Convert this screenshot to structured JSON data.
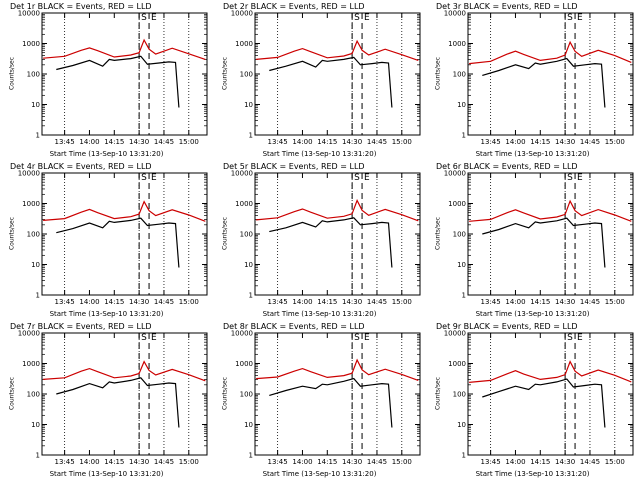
{
  "chart_data": [
    {
      "type": "line",
      "title": "Det 1r BLACK = Events, RED = LLD",
      "xlabel": "Start Time (13-Sep-10 13:31:20)",
      "ylabel": "Counts/sec",
      "y_scale": "log",
      "ylim": [
        1,
        10000
      ],
      "xlim": [
        "13:31:20",
        "15:11:00"
      ],
      "xticks": [
        "13:45",
        "14:00",
        "14:15",
        "14:30",
        "14:45",
        "15:00"
      ],
      "yticks": [
        "1",
        "10",
        "100",
        "1000",
        "10000"
      ],
      "markers": [
        "S",
        "E"
      ],
      "series": [
        {
          "name": "Events",
          "color": "#000000",
          "x": [
            "13:40",
            "13:50",
            "14:00",
            "14:08",
            "14:12",
            "14:15",
            "14:25",
            "14:31",
            "14:35",
            "14:42",
            "14:48",
            "14:52",
            "14:54"
          ],
          "values": [
            140,
            190,
            280,
            180,
            300,
            280,
            320,
            380,
            210,
            230,
            250,
            240,
            8
          ]
        },
        {
          "name": "LLD",
          "color": "#cc0000",
          "x": [
            "13:32",
            "13:45",
            "13:55",
            "14:00",
            "14:05",
            "14:15",
            "14:25",
            "14:30",
            "14:33",
            "14:36",
            "14:40",
            "14:50",
            "15:00",
            "15:10"
          ],
          "values": [
            330,
            380,
            600,
            720,
            580,
            360,
            420,
            500,
            1300,
            650,
            450,
            700,
            460,
            300
          ]
        }
      ]
    },
    {
      "type": "line",
      "title": "Det 2r BLACK = Events, RED = LLD",
      "xlabel": "Start Time (13-Sep-10 13:31:20)",
      "ylabel": "Counts/sec",
      "y_scale": "log",
      "ylim": [
        1,
        10000
      ],
      "xlim": [
        "13:31:20",
        "15:11:00"
      ],
      "xticks": [
        "13:45",
        "14:00",
        "14:15",
        "14:30",
        "14:45",
        "15:00"
      ],
      "yticks": [
        "1",
        "10",
        "100",
        "1000",
        "10000"
      ],
      "markers": [
        "S",
        "E"
      ],
      "series": [
        {
          "name": "Events",
          "color": "#000000",
          "x": [
            "13:40",
            "13:50",
            "14:00",
            "14:08",
            "14:12",
            "14:15",
            "14:25",
            "14:31",
            "14:35",
            "14:42",
            "14:48",
            "14:52",
            "14:54"
          ],
          "values": [
            130,
            180,
            260,
            170,
            280,
            260,
            300,
            350,
            200,
            220,
            240,
            230,
            8
          ]
        },
        {
          "name": "LLD",
          "color": "#cc0000",
          "x": [
            "13:32",
            "13:45",
            "13:55",
            "14:00",
            "14:05",
            "14:15",
            "14:25",
            "14:30",
            "14:33",
            "14:36",
            "14:40",
            "14:50",
            "15:00",
            "15:10"
          ],
          "values": [
            300,
            350,
            560,
            680,
            540,
            340,
            390,
            470,
            1200,
            600,
            420,
            650,
            430,
            280
          ]
        }
      ]
    },
    {
      "type": "line",
      "title": "Det 3r BLACK = Events, RED = LLD",
      "xlabel": "Start Time (13-Sep-10 13:31:20)",
      "ylabel": "Counts/sec",
      "y_scale": "log",
      "ylim": [
        1,
        10000
      ],
      "xlim": [
        "13:31:20",
        "15:11:00"
      ],
      "xticks": [
        "13:45",
        "14:00",
        "14:15",
        "14:30",
        "14:45",
        "15:00"
      ],
      "yticks": [
        "1",
        "10",
        "100",
        "1000",
        "10000"
      ],
      "markers": [
        "S",
        "E"
      ],
      "series": [
        {
          "name": "Events",
          "color": "#000000",
          "x": [
            "13:40",
            "13:50",
            "14:00",
            "14:08",
            "14:12",
            "14:15",
            "14:25",
            "14:31",
            "14:35",
            "14:42",
            "14:48",
            "14:52",
            "14:54"
          ],
          "values": [
            90,
            130,
            200,
            150,
            230,
            210,
            260,
            320,
            180,
            200,
            220,
            210,
            8
          ]
        },
        {
          "name": "LLD",
          "color": "#cc0000",
          "x": [
            "13:32",
            "13:45",
            "13:55",
            "14:00",
            "14:05",
            "14:15",
            "14:25",
            "14:30",
            "14:33",
            "14:36",
            "14:40",
            "14:50",
            "15:00",
            "15:10"
          ],
          "values": [
            220,
            260,
            450,
            560,
            440,
            280,
            330,
            420,
            1100,
            550,
            380,
            600,
            400,
            240
          ]
        }
      ]
    },
    {
      "type": "line",
      "title": "Det 4r BLACK = Events, RED = LLD",
      "xlabel": "Start Time (13-Sep-10 13:31:20)",
      "ylabel": "Counts/sec",
      "y_scale": "log",
      "ylim": [
        1,
        10000
      ],
      "xlim": [
        "13:31:20",
        "15:11:00"
      ],
      "xticks": [
        "13:45",
        "14:00",
        "14:15",
        "14:30",
        "14:45",
        "15:00"
      ],
      "yticks": [
        "1",
        "10",
        "100",
        "1000",
        "10000"
      ],
      "markers": [
        "S",
        "E"
      ],
      "series": [
        {
          "name": "Events",
          "color": "#000000",
          "x": [
            "13:40",
            "13:50",
            "14:00",
            "14:08",
            "14:12",
            "14:15",
            "14:25",
            "14:31",
            "14:35",
            "14:42",
            "14:48",
            "14:52",
            "14:54"
          ],
          "values": [
            110,
            150,
            230,
            160,
            260,
            240,
            280,
            330,
            190,
            210,
            230,
            220,
            8
          ]
        },
        {
          "name": "LLD",
          "color": "#cc0000",
          "x": [
            "13:32",
            "13:45",
            "13:55",
            "14:00",
            "14:05",
            "14:15",
            "14:25",
            "14:30",
            "14:33",
            "14:36",
            "14:40",
            "14:50",
            "15:00",
            "15:10"
          ],
          "values": [
            280,
            320,
            520,
            640,
            500,
            320,
            370,
            450,
            1150,
            580,
            400,
            620,
            420,
            260
          ]
        }
      ]
    },
    {
      "type": "line",
      "title": "Det 5r BLACK = Events, RED = LLD",
      "xlabel": "Start Time (13-Sep-10 13:31:20)",
      "ylabel": "Counts/sec",
      "y_scale": "log",
      "ylim": [
        1,
        10000
      ],
      "xlim": [
        "13:31:20",
        "15:11:00"
      ],
      "xticks": [
        "13:45",
        "14:00",
        "14:15",
        "14:30",
        "14:45",
        "15:00"
      ],
      "yticks": [
        "1",
        "10",
        "100",
        "1000",
        "10000"
      ],
      "markers": [
        "S",
        "E"
      ],
      "series": [
        {
          "name": "Events",
          "color": "#000000",
          "x": [
            "13:40",
            "13:50",
            "14:00",
            "14:08",
            "14:12",
            "14:15",
            "14:25",
            "14:31",
            "14:35",
            "14:42",
            "14:48",
            "14:52",
            "14:54"
          ],
          "values": [
            120,
            160,
            240,
            170,
            270,
            250,
            290,
            340,
            200,
            220,
            240,
            230,
            8
          ]
        },
        {
          "name": "LLD",
          "color": "#cc0000",
          "x": [
            "13:32",
            "13:45",
            "13:55",
            "14:00",
            "14:05",
            "14:15",
            "14:25",
            "14:30",
            "14:33",
            "14:36",
            "14:40",
            "14:50",
            "15:00",
            "15:10"
          ],
          "values": [
            290,
            340,
            540,
            660,
            520,
            330,
            380,
            460,
            1250,
            600,
            410,
            640,
            430,
            270
          ]
        }
      ]
    },
    {
      "type": "line",
      "title": "Det 6r BLACK = Events, RED = LLD",
      "xlabel": "Start Time (13-Sep-10 13:31:20)",
      "ylabel": "Counts/sec",
      "y_scale": "log",
      "ylim": [
        1,
        10000
      ],
      "xlim": [
        "13:31:20",
        "15:11:00"
      ],
      "xticks": [
        "13:45",
        "14:00",
        "14:15",
        "14:30",
        "14:45",
        "15:00"
      ],
      "yticks": [
        "1",
        "10",
        "100",
        "1000",
        "10000"
      ],
      "markers": [
        "S",
        "E"
      ],
      "series": [
        {
          "name": "Events",
          "color": "#000000",
          "x": [
            "13:40",
            "13:50",
            "14:00",
            "14:08",
            "14:12",
            "14:15",
            "14:25",
            "14:31",
            "14:35",
            "14:42",
            "14:48",
            "14:52",
            "14:54"
          ],
          "values": [
            100,
            140,
            220,
            160,
            250,
            230,
            270,
            330,
            190,
            210,
            230,
            220,
            8
          ]
        },
        {
          "name": "LLD",
          "color": "#cc0000",
          "x": [
            "13:32",
            "13:45",
            "13:55",
            "14:00",
            "14:05",
            "14:15",
            "14:25",
            "14:30",
            "14:33",
            "14:36",
            "14:40",
            "14:50",
            "15:00",
            "15:10"
          ],
          "values": [
            260,
            300,
            500,
            620,
            490,
            310,
            360,
            440,
            1200,
            580,
            400,
            630,
            420,
            260
          ]
        }
      ]
    },
    {
      "type": "line",
      "title": "Det 7r BLACK = Events, RED = LLD",
      "xlabel": "Start Time (13-Sep-10 13:31:20)",
      "ylabel": "Counts/sec",
      "y_scale": "log",
      "ylim": [
        1,
        10000
      ],
      "xlim": [
        "13:31:20",
        "15:11:00"
      ],
      "xticks": [
        "13:45",
        "14:00",
        "14:15",
        "14:30",
        "14:45",
        "15:00"
      ],
      "yticks": [
        "1",
        "10",
        "100",
        "1000",
        "10000"
      ],
      "markers": [
        "S",
        "E"
      ],
      "series": [
        {
          "name": "Events",
          "color": "#000000",
          "x": [
            "13:40",
            "13:50",
            "14:00",
            "14:08",
            "14:12",
            "14:15",
            "14:25",
            "14:31",
            "14:35",
            "14:42",
            "14:48",
            "14:52",
            "14:54"
          ],
          "values": [
            100,
            140,
            220,
            160,
            250,
            230,
            280,
            340,
            190,
            210,
            230,
            220,
            8
          ]
        },
        {
          "name": "LLD",
          "color": "#cc0000",
          "x": [
            "13:32",
            "13:45",
            "13:55",
            "14:00",
            "14:05",
            "14:15",
            "14:25",
            "14:30",
            "14:33",
            "14:36",
            "14:40",
            "14:50",
            "15:00",
            "15:10"
          ],
          "values": [
            300,
            340,
            560,
            680,
            540,
            340,
            390,
            470,
            1150,
            590,
            420,
            640,
            430,
            270
          ]
        }
      ]
    },
    {
      "type": "line",
      "title": "Det 8r BLACK = Events, RED = LLD",
      "xlabel": "Start Time (13-Sep-10 13:31:20)",
      "ylabel": "Counts/sec",
      "y_scale": "log",
      "ylim": [
        1,
        10000
      ],
      "xlim": [
        "13:31:20",
        "15:11:00"
      ],
      "xticks": [
        "13:45",
        "14:00",
        "14:15",
        "14:30",
        "14:45",
        "15:00"
      ],
      "yticks": [
        "1",
        "10",
        "100",
        "1000",
        "10000"
      ],
      "markers": [
        "S",
        "E"
      ],
      "series": [
        {
          "name": "Events",
          "color": "#000000",
          "x": [
            "13:40",
            "13:50",
            "14:00",
            "14:08",
            "14:12",
            "14:15",
            "14:25",
            "14:31",
            "14:35",
            "14:42",
            "14:48",
            "14:52",
            "14:54"
          ],
          "values": [
            90,
            130,
            180,
            150,
            210,
            200,
            260,
            320,
            180,
            200,
            220,
            210,
            8
          ]
        },
        {
          "name": "LLD",
          "color": "#cc0000",
          "x": [
            "13:32",
            "13:45",
            "13:55",
            "14:00",
            "14:05",
            "14:15",
            "14:25",
            "14:30",
            "14:33",
            "14:36",
            "14:40",
            "14:50",
            "15:00",
            "15:10"
          ],
          "values": [
            320,
            360,
            560,
            680,
            540,
            350,
            400,
            480,
            1300,
            620,
            430,
            650,
            440,
            280
          ]
        }
      ]
    },
    {
      "type": "line",
      "title": "Det 9r BLACK = Events, RED = LLD",
      "xlabel": "Start Time (13-Sep-10 13:31:20)",
      "ylabel": "Counts/sec",
      "y_scale": "log",
      "ylim": [
        1,
        10000
      ],
      "xlim": [
        "13:31:20",
        "15:11:00"
      ],
      "xticks": [
        "13:45",
        "14:00",
        "14:15",
        "14:30",
        "14:45",
        "15:00"
      ],
      "yticks": [
        "1",
        "10",
        "100",
        "1000",
        "10000"
      ],
      "markers": [
        "S",
        "E"
      ],
      "series": [
        {
          "name": "Events",
          "color": "#000000",
          "x": [
            "13:40",
            "13:50",
            "14:00",
            "14:08",
            "14:12",
            "14:15",
            "14:25",
            "14:31",
            "14:35",
            "14:42",
            "14:48",
            "14:52",
            "14:54"
          ],
          "values": [
            80,
            120,
            180,
            140,
            210,
            200,
            250,
            310,
            170,
            190,
            210,
            200,
            8
          ]
        },
        {
          "name": "LLD",
          "color": "#cc0000",
          "x": [
            "13:32",
            "13:45",
            "13:55",
            "14:00",
            "14:05",
            "14:15",
            "14:25",
            "14:30",
            "14:33",
            "14:36",
            "14:40",
            "14:50",
            "15:00",
            "15:10"
          ],
          "values": [
            240,
            280,
            460,
            580,
            450,
            300,
            350,
            430,
            1150,
            560,
            390,
            610,
            410,
            250
          ]
        }
      ]
    }
  ]
}
